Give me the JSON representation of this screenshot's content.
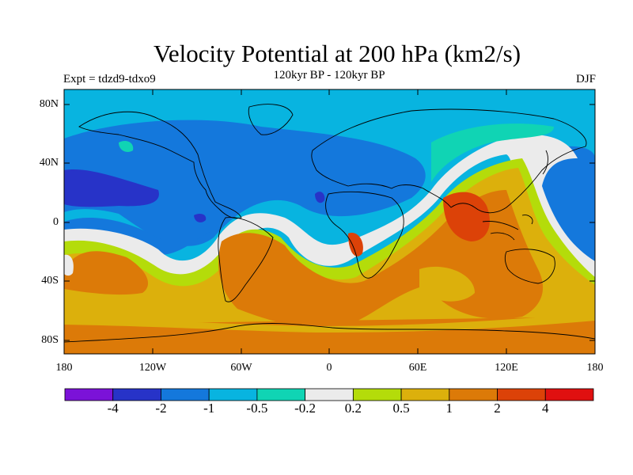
{
  "title": "Velocity Potential at 200 hPa (km2/s)",
  "experiment": "Expt = tdzd9-tdxo9",
  "period": "120kyr BP - 120kyr BP",
  "season": "DJF",
  "lat_labels": [
    "80N",
    "40N",
    "0",
    "40S",
    "80S"
  ],
  "lon_labels": [
    "180",
    "120W",
    "60W",
    "0",
    "60E",
    "120E",
    "180"
  ],
  "colorbar": {
    "colors": [
      "#7b12d8",
      "#2733c8",
      "#1478dc",
      "#08b4e0",
      "#10d4b4",
      "#ebebeb",
      "#b4dc0a",
      "#dcb00c",
      "#dc7a08",
      "#dc4208",
      "#e01010"
    ],
    "labels": [
      "-4",
      "-2",
      "-1",
      "-0.5",
      "-0.2",
      "0.2",
      "0.5",
      "1",
      "2",
      "4"
    ]
  }
}
